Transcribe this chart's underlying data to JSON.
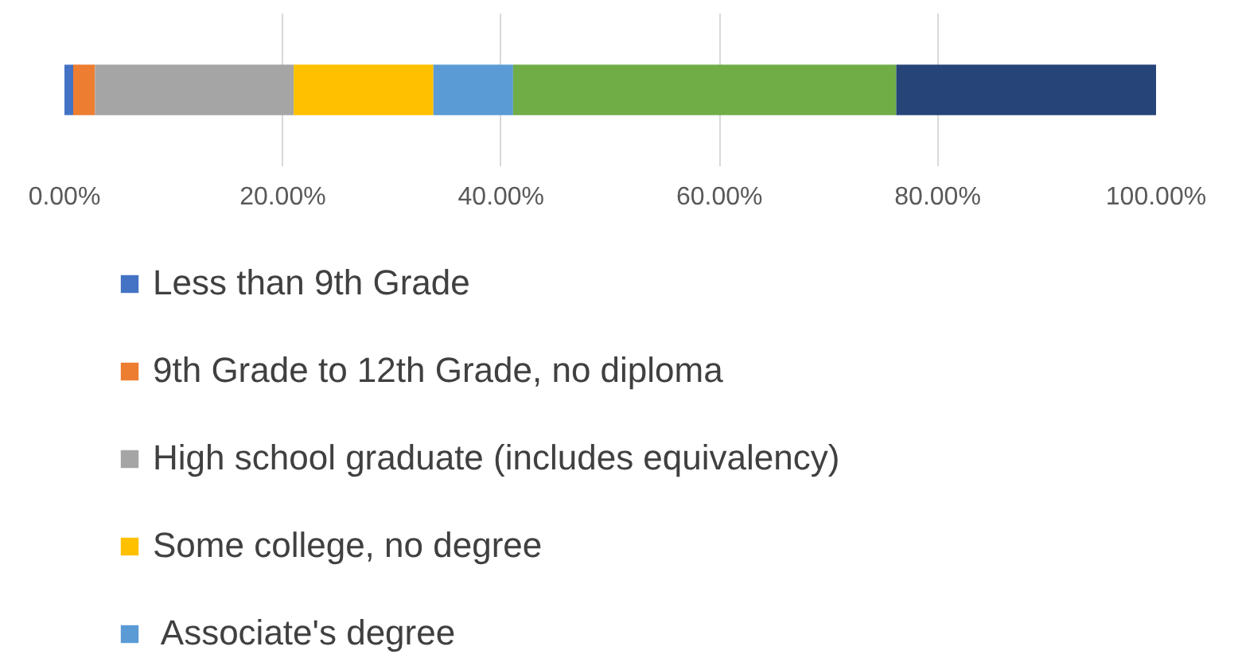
{
  "chart_data": {
    "type": "bar",
    "orientation": "horizontal",
    "stacked": true,
    "categories": [
      null
    ],
    "series": [
      {
        "name": "Less than 9th Grade",
        "color": "#4472c4",
        "values": [
          0.8
        ]
      },
      {
        "name": "9th Grade to 12th Grade, no diploma",
        "color": "#ed7d31",
        "values": [
          2.0
        ]
      },
      {
        "name": "High school graduate (includes equivalency)",
        "color": "#a5a5a5",
        "values": [
          18.2
        ]
      },
      {
        "name": "Some college, no degree",
        "color": "#ffc000",
        "values": [
          12.8
        ]
      },
      {
        "name": " Associate's degree",
        "color": "#5b9bd5",
        "values": [
          7.3
        ]
      },
      {
        "color": "#70ad47",
        "values": [
          35.1
        ]
      },
      {
        "color": "#264478",
        "values": [
          23.8
        ]
      }
    ],
    "xlim": [
      0,
      100
    ],
    "xticks": [
      {
        "value": 0,
        "label": "0.00%"
      },
      {
        "value": 20,
        "label": "20.00%"
      },
      {
        "value": 40,
        "label": "40.00%"
      },
      {
        "value": 60,
        "label": "60.00%"
      },
      {
        "value": 80,
        "label": "80.00%"
      },
      {
        "value": 100,
        "label": "100.00%"
      }
    ],
    "grid": "x",
    "legend": "bottom"
  }
}
